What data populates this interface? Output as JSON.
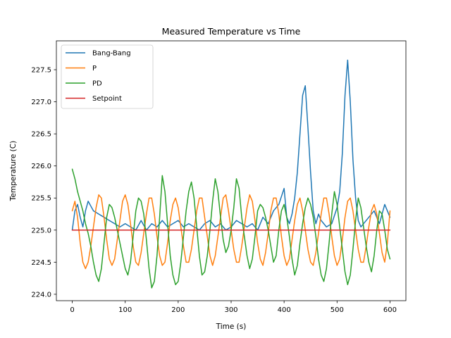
{
  "chart_data": {
    "type": "line",
    "title": "Measured Temperature vs Time",
    "xlabel": "Time (s)",
    "ylabel": "Temperature (C)",
    "xlim": [
      -30,
      630
    ],
    "ylim": [
      223.9,
      227.95
    ],
    "xticks": [
      0,
      100,
      200,
      300,
      400,
      500,
      600
    ],
    "yticks": [
      224.0,
      224.5,
      225.0,
      225.5,
      226.0,
      226.5,
      227.0,
      227.5
    ],
    "xtick_labels": [
      "0",
      "100",
      "200",
      "300",
      "400",
      "500",
      "600"
    ],
    "ytick_labels": [
      "224.0",
      "224.5",
      "225.0",
      "225.5",
      "226.0",
      "226.5",
      "227.0",
      "227.5"
    ],
    "grid": false,
    "legend_position": "top-left",
    "series": [
      {
        "name": "Bang-Bang",
        "color": "#1f77b4",
        "x": [
          0,
          5,
          10,
          15,
          20,
          25,
          30,
          40,
          50,
          60,
          70,
          80,
          90,
          100,
          110,
          120,
          130,
          140,
          150,
          160,
          170,
          180,
          190,
          200,
          210,
          220,
          230,
          240,
          250,
          260,
          270,
          280,
          290,
          300,
          310,
          320,
          330,
          340,
          350,
          360,
          370,
          380,
          390,
          400,
          405,
          410,
          415,
          420,
          425,
          430,
          435,
          440,
          445,
          450,
          455,
          460,
          465,
          470,
          480,
          490,
          500,
          505,
          510,
          515,
          520,
          525,
          530,
          535,
          540,
          545,
          550,
          560,
          570,
          580,
          590,
          600
        ],
        "y": [
          225.0,
          225.3,
          225.4,
          225.2,
          225.05,
          225.3,
          225.45,
          225.3,
          225.25,
          225.2,
          225.15,
          225.1,
          225.05,
          225.1,
          225.05,
          225.0,
          225.15,
          225.0,
          225.1,
          225.05,
          225.15,
          225.05,
          225.1,
          225.15,
          225.05,
          225.1,
          225.05,
          225.0,
          225.1,
          225.15,
          225.05,
          225.1,
          225.0,
          225.05,
          225.15,
          225.1,
          225.05,
          225.1,
          225.0,
          225.2,
          225.1,
          225.3,
          225.4,
          225.65,
          225.2,
          225.1,
          225.25,
          225.5,
          225.9,
          226.5,
          227.1,
          227.25,
          226.6,
          225.9,
          225.3,
          225.1,
          225.25,
          225.15,
          225.05,
          225.1,
          225.35,
          225.6,
          226.2,
          227.1,
          227.65,
          227.0,
          226.1,
          225.5,
          225.15,
          225.05,
          225.1,
          225.2,
          225.3,
          225.1,
          225.4,
          225.2
        ]
      },
      {
        "name": "P",
        "color": "#ff7f0e",
        "x": [
          0,
          5,
          10,
          15,
          20,
          25,
          30,
          35,
          40,
          45,
          50,
          55,
          60,
          65,
          70,
          75,
          80,
          85,
          90,
          95,
          100,
          105,
          110,
          115,
          120,
          125,
          130,
          135,
          140,
          145,
          150,
          155,
          160,
          165,
          170,
          175,
          180,
          185,
          190,
          195,
          200,
          205,
          210,
          215,
          220,
          225,
          230,
          235,
          240,
          245,
          250,
          255,
          260,
          265,
          270,
          275,
          280,
          285,
          290,
          295,
          300,
          305,
          310,
          315,
          320,
          325,
          330,
          335,
          340,
          345,
          350,
          355,
          360,
          365,
          370,
          375,
          380,
          385,
          390,
          395,
          400,
          405,
          410,
          415,
          420,
          425,
          430,
          435,
          440,
          445,
          450,
          455,
          460,
          465,
          470,
          475,
          480,
          485,
          490,
          495,
          500,
          505,
          510,
          515,
          520,
          525,
          530,
          535,
          540,
          545,
          550,
          555,
          560,
          565,
          570,
          575,
          580,
          585,
          590,
          595,
          600
        ],
        "y": [
          225.3,
          225.45,
          225.2,
          224.8,
          224.5,
          224.4,
          224.5,
          224.75,
          225.05,
          225.35,
          225.55,
          225.5,
          225.2,
          224.85,
          224.55,
          224.45,
          224.55,
          224.85,
          225.15,
          225.45,
          225.55,
          225.4,
          225.1,
          224.75,
          224.5,
          224.45,
          224.65,
          224.95,
          225.25,
          225.5,
          225.5,
          225.25,
          224.9,
          224.6,
          224.45,
          224.5,
          224.8,
          225.15,
          225.4,
          225.5,
          225.35,
          225.05,
          224.75,
          224.5,
          224.5,
          224.7,
          225.0,
          225.3,
          225.5,
          225.5,
          225.2,
          224.9,
          224.6,
          224.45,
          224.6,
          224.9,
          225.2,
          225.5,
          225.55,
          225.3,
          225.0,
          224.7,
          224.5,
          224.5,
          224.75,
          225.05,
          225.35,
          225.55,
          225.45,
          225.15,
          224.8,
          224.55,
          224.45,
          224.65,
          224.95,
          225.3,
          225.5,
          225.5,
          225.25,
          224.9,
          224.6,
          224.45,
          224.55,
          224.85,
          225.15,
          225.4,
          225.5,
          225.3,
          225.0,
          224.7,
          224.5,
          224.45,
          224.65,
          224.95,
          225.25,
          225.5,
          225.5,
          225.25,
          224.9,
          224.6,
          224.45,
          224.55,
          224.85,
          225.2,
          225.45,
          225.5,
          225.3,
          225.0,
          224.7,
          224.5,
          224.5,
          224.75,
          225.05,
          225.3,
          225.4,
          225.25,
          224.95,
          224.65,
          224.5,
          224.8,
          225.3
        ]
      },
      {
        "name": "PD",
        "color": "#2ca02c",
        "x": [
          0,
          5,
          10,
          15,
          20,
          25,
          30,
          35,
          40,
          45,
          50,
          55,
          60,
          65,
          70,
          75,
          80,
          85,
          90,
          95,
          100,
          105,
          110,
          115,
          120,
          125,
          130,
          135,
          140,
          145,
          150,
          155,
          160,
          165,
          170,
          175,
          180,
          185,
          190,
          195,
          200,
          205,
          210,
          215,
          220,
          225,
          230,
          235,
          240,
          245,
          250,
          255,
          260,
          265,
          270,
          275,
          280,
          285,
          290,
          295,
          300,
          305,
          310,
          315,
          320,
          325,
          330,
          335,
          340,
          345,
          350,
          355,
          360,
          365,
          370,
          375,
          380,
          385,
          390,
          395,
          400,
          405,
          410,
          415,
          420,
          425,
          430,
          435,
          440,
          445,
          450,
          455,
          460,
          465,
          470,
          475,
          480,
          485,
          490,
          495,
          500,
          505,
          510,
          515,
          520,
          525,
          530,
          535,
          540,
          545,
          550,
          555,
          560,
          565,
          570,
          575,
          580,
          585,
          590,
          595,
          600
        ],
        "y": [
          225.95,
          225.8,
          225.6,
          225.45,
          225.3,
          225.1,
          224.95,
          224.75,
          224.5,
          224.3,
          224.2,
          224.4,
          224.8,
          225.2,
          225.4,
          225.35,
          225.2,
          225.0,
          224.8,
          224.6,
          224.4,
          224.3,
          224.5,
          224.9,
          225.3,
          225.5,
          225.45,
          225.25,
          224.85,
          224.4,
          224.1,
          224.2,
          224.6,
          225.2,
          225.85,
          225.6,
          225.1,
          224.6,
          224.3,
          224.15,
          224.2,
          224.5,
          224.9,
          225.3,
          225.6,
          225.75,
          225.5,
          225.05,
          224.6,
          224.3,
          224.35,
          224.6,
          225.0,
          225.45,
          225.8,
          225.6,
          225.2,
          224.85,
          224.65,
          224.75,
          225.0,
          225.35,
          225.8,
          225.65,
          225.2,
          224.9,
          224.6,
          224.4,
          224.55,
          224.9,
          225.3,
          225.4,
          225.35,
          225.2,
          225.0,
          224.75,
          224.5,
          224.6,
          225.0,
          225.3,
          225.4,
          225.2,
          224.9,
          224.55,
          224.3,
          224.45,
          224.8,
          225.1,
          225.35,
          225.5,
          225.4,
          225.2,
          224.9,
          224.55,
          224.3,
          224.2,
          224.4,
          224.8,
          225.25,
          225.6,
          225.4,
          225.05,
          224.7,
          224.35,
          224.15,
          224.3,
          224.7,
          225.15,
          225.5,
          225.35,
          225.05,
          224.75,
          224.5,
          224.35,
          224.6,
          225.0,
          225.3,
          225.25,
          225.0,
          224.7,
          224.55
        ]
      },
      {
        "name": "Setpoint",
        "color": "#d62728",
        "x": [
          0,
          600
        ],
        "y": [
          225.0,
          225.0
        ]
      }
    ]
  }
}
